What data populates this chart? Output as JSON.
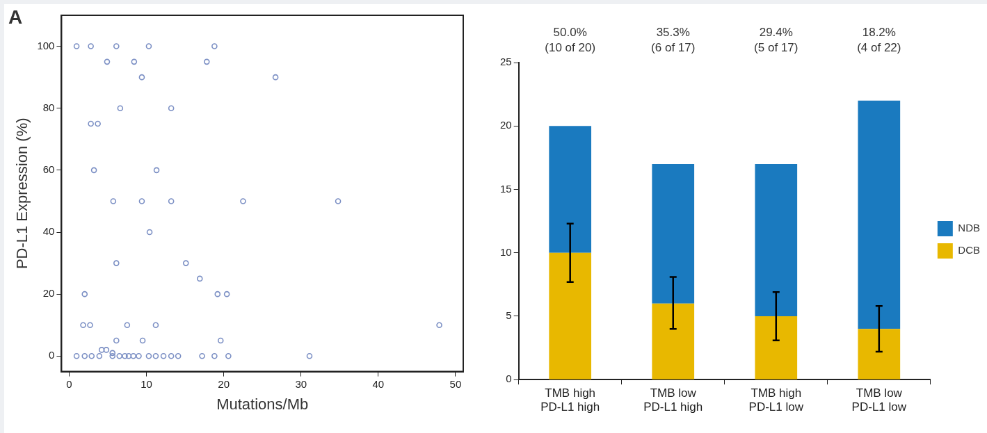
{
  "chart_data": [
    {
      "type": "scatter",
      "annotations": [
        "A"
      ],
      "xlabel": "Mutations/Mb",
      "ylabel": "PD-L1 Expression (%)",
      "color": "#7b8fc4",
      "marker": "circle",
      "x": [
        0.95,
        2.8,
        6.1,
        10.3,
        18.8,
        4.9,
        8.4,
        17.8,
        9.4,
        26.7,
        6.6,
        13.2,
        2.8,
        3.7,
        3.2,
        11.3,
        5.7,
        9.4,
        13.2,
        22.5,
        34.8,
        10.4,
        6.1,
        15.1,
        16.9,
        2.0,
        19.2,
        20.4,
        1.8,
        2.7,
        7.5,
        11.2,
        47.9,
        6.1,
        9.5,
        19.6,
        4.2,
        4.8,
        5.6,
        0.95,
        2.0,
        2.9,
        3.9,
        5.6,
        6.5,
        7.2,
        7.7,
        8.3,
        9.0,
        10.3,
        11.2,
        12.2,
        13.2,
        14.1,
        17.2,
        18.8,
        20.6,
        31.1
      ],
      "values": [
        100,
        100,
        100,
        100,
        100,
        95,
        95,
        95,
        90,
        90,
        80,
        80,
        75,
        75,
        60,
        60,
        50,
        50,
        50,
        50,
        50,
        40,
        30,
        30,
        25,
        20,
        20,
        20,
        10,
        10,
        10,
        10,
        10,
        5,
        5,
        5,
        2,
        2,
        1,
        0,
        0,
        0,
        0,
        0,
        0,
        0,
        0,
        0,
        0,
        0,
        0,
        0,
        0,
        0,
        0,
        0,
        0,
        0
      ],
      "xlim": [
        -1,
        51
      ],
      "xticks": [
        0,
        10,
        20,
        30,
        40,
        50
      ],
      "ylim": [
        -5,
        110
      ],
      "yticks": [
        0,
        20,
        40,
        60,
        80,
        100
      ]
    },
    {
      "type": "bar",
      "stacked": true,
      "legend": "right",
      "categories": [
        "TMB high\nPD-L1 high",
        "TMB low\nPD-L1 high",
        "TMB high\nPD-L1 low",
        "TMB low\nPD-L1 low"
      ],
      "series": [
        {
          "name": "DCB",
          "color": "#e8b800",
          "values": [
            10,
            6,
            5,
            4
          ],
          "errors": [
            [
              7.7,
              12.3
            ],
            [
              4,
              8.1
            ],
            [
              3.1,
              6.9
            ],
            [
              2.2,
              5.8
            ]
          ]
        },
        {
          "name": "NDB",
          "color": "#1a7abf",
          "values": [
            10,
            11,
            12,
            18
          ]
        }
      ],
      "ylim": [
        0,
        25
      ],
      "yticks": [
        0,
        5,
        10,
        15,
        20,
        25
      ],
      "annotations": [
        "50.0%\n(10 of 20)",
        "35.3%\n(6 of 17)",
        "29.4%\n(5 of 17)",
        "18.2%\n(4 of 22)"
      ]
    }
  ]
}
